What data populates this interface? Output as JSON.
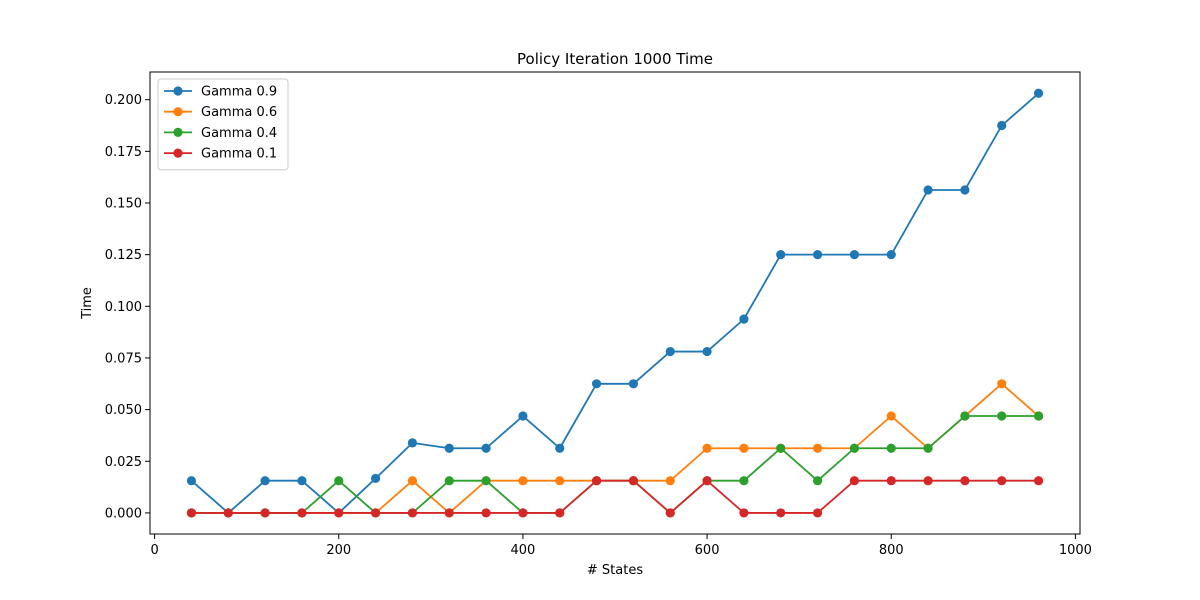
{
  "chart_data": {
    "type": "line",
    "title": "Policy Iteration 1000  Time",
    "xlabel": "# States",
    "ylabel": "Time",
    "xlim": [
      -5,
      1005
    ],
    "ylim": [
      -0.0102,
      0.2134
    ],
    "x_ticks": [
      0,
      200,
      400,
      600,
      800,
      1000
    ],
    "x_tick_labels": [
      "0",
      "200",
      "400",
      "600",
      "800",
      "1000"
    ],
    "y_ticks": [
      0.0,
      0.025,
      0.05,
      0.075,
      0.1,
      0.125,
      0.15,
      0.175,
      0.2
    ],
    "y_tick_labels": [
      "0.000",
      "0.025",
      "0.050",
      "0.075",
      "0.100",
      "0.125",
      "0.150",
      "0.175",
      "0.200"
    ],
    "grid": false,
    "legend_position": "top-left",
    "x": [
      40,
      80,
      120,
      160,
      200,
      240,
      280,
      320,
      360,
      400,
      440,
      480,
      520,
      560,
      600,
      640,
      680,
      720,
      760,
      800,
      840,
      880,
      920,
      960
    ],
    "series": [
      {
        "name": "Gamma 0.9",
        "color": "#1f77b4",
        "values": [
          0.0156,
          0,
          0.0156,
          0.0156,
          0,
          0.0167,
          0.0339,
          0.0313,
          0.0313,
          0.0469,
          0.0313,
          0.0625,
          0.0625,
          0.0781,
          0.0781,
          0.0938,
          0.125,
          0.125,
          0.125,
          0.125,
          0.1563,
          0.1563,
          0.1875,
          0.2031
        ]
      },
      {
        "name": "Gamma 0.6",
        "color": "#ff7f0e",
        "values": [
          0,
          0,
          0,
          0,
          0,
          0,
          0.0156,
          0,
          0.0156,
          0.0156,
          0.0156,
          0.0156,
          0.0156,
          0.0156,
          0.0313,
          0.0313,
          0.0313,
          0.0313,
          0.0313,
          0.0469,
          0.0313,
          0.0469,
          0.0625,
          0.0469
        ]
      },
      {
        "name": "Gamma 0.4",
        "color": "#2ca02c",
        "values": [
          0,
          0,
          0,
          0,
          0.0156,
          0,
          0,
          0.0156,
          0.0156,
          0,
          0,
          0.0156,
          0.0156,
          0,
          0.0156,
          0.0156,
          0.0313,
          0.0156,
          0.0313,
          0.0313,
          0.0313,
          0.0469,
          0.0469,
          0.0469
        ]
      },
      {
        "name": "Gamma 0.1",
        "color": "#d62728",
        "values": [
          0,
          0,
          0,
          0,
          0,
          0,
          0,
          0,
          0,
          0,
          0,
          0.0156,
          0.0156,
          0,
          0.0156,
          0,
          0,
          0,
          0.0156,
          0.0156,
          0.0156,
          0.0156,
          0.0156,
          0.0156
        ]
      }
    ]
  }
}
